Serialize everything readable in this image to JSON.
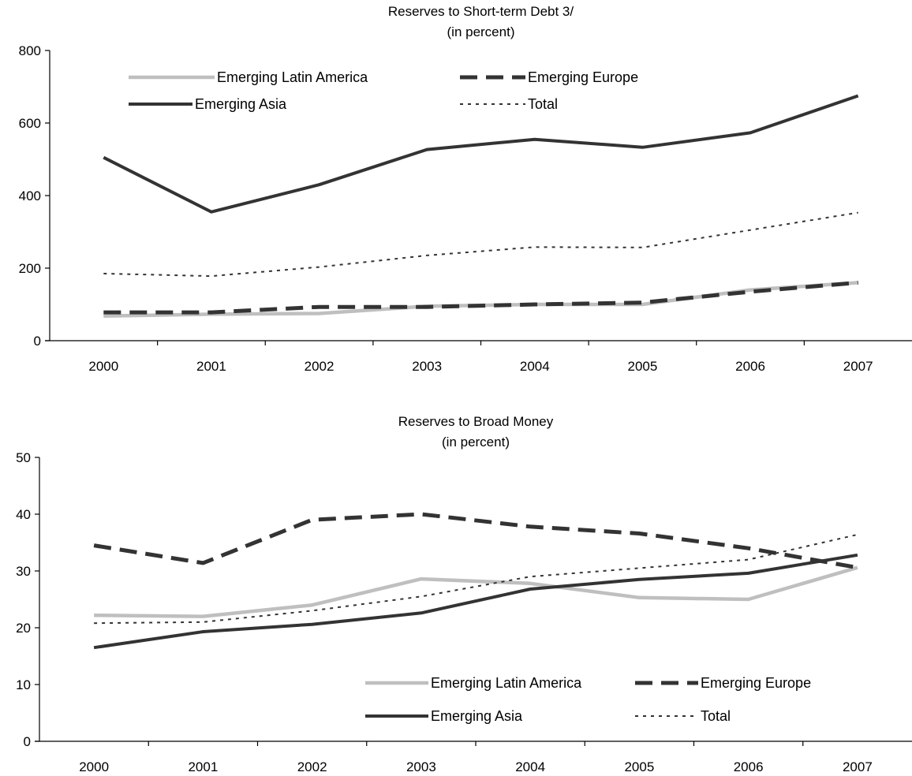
{
  "chart_data": [
    {
      "type": "line",
      "title": "Reserves to Short-term Debt 3/",
      "subtitle": "(in percent)",
      "xlabel": "",
      "ylabel": "",
      "categories": [
        "2000",
        "2001",
        "2002",
        "2003",
        "2004",
        "2005",
        "2006",
        "2007"
      ],
      "yticks": [
        "0",
        "200",
        "400",
        "600",
        "800"
      ],
      "ylim": [
        0,
        800
      ],
      "grid": false,
      "legend_position": "top-left",
      "series": [
        {
          "name": "Emerging Latin America",
          "style": "solid-light",
          "color": "#bfbfbf",
          "values": [
            68,
            73,
            75,
            95,
            100,
            100,
            140,
            160
          ]
        },
        {
          "name": "Emerging Europe",
          "style": "long-dash",
          "color": "#333333",
          "values": [
            78,
            78,
            93,
            93,
            100,
            105,
            135,
            160
          ]
        },
        {
          "name": "Emerging Asia",
          "style": "solid-dark",
          "color": "#333333",
          "values": [
            505,
            355,
            430,
            527,
            555,
            533,
            573,
            675
          ]
        },
        {
          "name": "Total",
          "style": "dotted",
          "color": "#333333",
          "values": [
            185,
            178,
            203,
            235,
            258,
            257,
            305,
            353
          ]
        }
      ]
    },
    {
      "type": "line",
      "title": "Reserves to Broad Money",
      "subtitle": "(in percent)",
      "xlabel": "",
      "ylabel": "",
      "categories": [
        "2000",
        "2001",
        "2002",
        "2003",
        "2004",
        "2005",
        "2006",
        "2007"
      ],
      "yticks": [
        "0",
        "10",
        "20",
        "30",
        "40",
        "50"
      ],
      "ylim": [
        0,
        50
      ],
      "grid": false,
      "legend_position": "bottom-right",
      "series": [
        {
          "name": "Emerging Latin America",
          "style": "solid-light",
          "color": "#bfbfbf",
          "values": [
            22.2,
            22.0,
            24.0,
            28.6,
            27.8,
            25.3,
            25.0,
            30.6
          ]
        },
        {
          "name": "Emerging Europe",
          "style": "long-dash",
          "color": "#333333",
          "values": [
            34.5,
            31.4,
            39.0,
            40.0,
            37.8,
            36.6,
            34.0,
            30.6
          ]
        },
        {
          "name": "Emerging Asia",
          "style": "solid-dark",
          "color": "#333333",
          "values": [
            16.5,
            19.3,
            20.6,
            22.6,
            26.8,
            28.5,
            29.6,
            32.8
          ]
        },
        {
          "name": "Total",
          "style": "dotted",
          "color": "#333333",
          "values": [
            20.8,
            21.0,
            23.0,
            25.5,
            29.0,
            30.5,
            32.0,
            36.4
          ]
        }
      ]
    }
  ]
}
